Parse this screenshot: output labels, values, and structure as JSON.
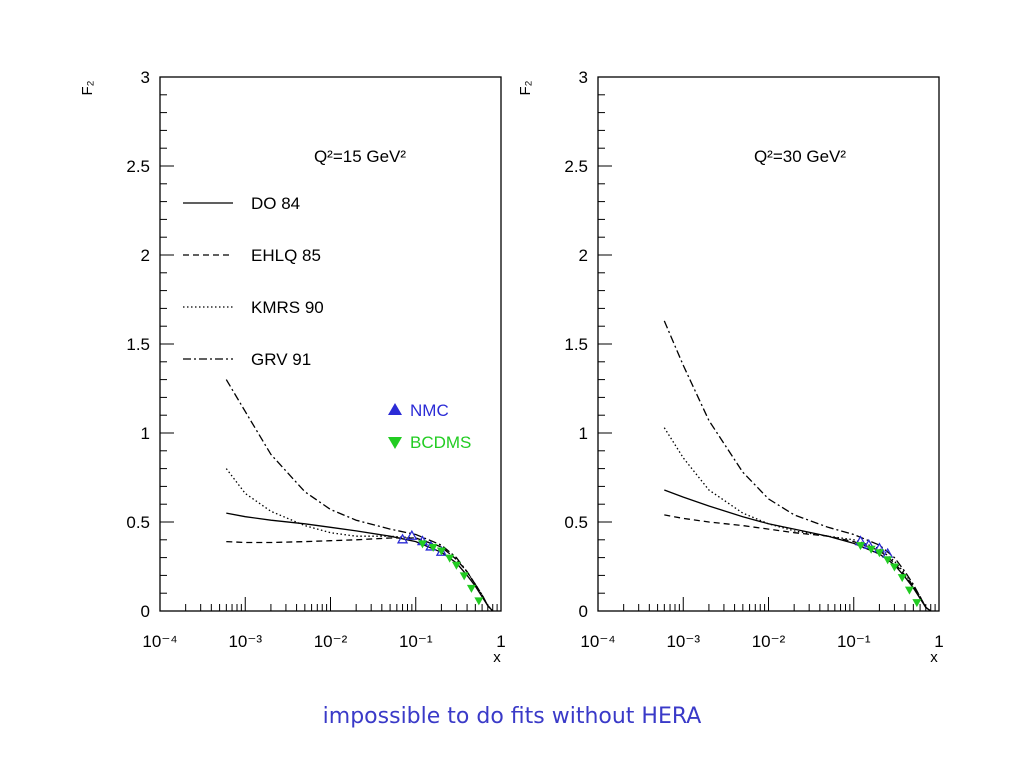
{
  "caption": "impossible to do fits without HERA",
  "chart_data": [
    {
      "type": "line",
      "title": "Q²=15 GeV²",
      "ylabel": "F₂",
      "xlabel": "x",
      "xscale": "log",
      "xlim": [
        0.0001,
        1
      ],
      "ylim": [
        0,
        3
      ],
      "xticks": [
        "10⁻⁴",
        "10⁻³",
        "10⁻²",
        "10⁻¹",
        "1"
      ],
      "yticks": [
        "0",
        "0.5",
        "1",
        "1.5",
        "2",
        "2.5",
        "3"
      ],
      "legend": "top-left",
      "series": [
        {
          "name": "DO 84",
          "style": "solid",
          "x": [
            0.0006,
            0.001,
            0.002,
            0.005,
            0.01,
            0.02,
            0.05,
            0.1,
            0.2,
            0.3,
            0.4,
            0.5,
            0.6,
            0.7,
            0.8
          ],
          "y": [
            0.55,
            0.53,
            0.51,
            0.49,
            0.47,
            0.45,
            0.42,
            0.39,
            0.33,
            0.27,
            0.2,
            0.14,
            0.08,
            0.03,
            0.0
          ]
        },
        {
          "name": "EHLQ 85",
          "style": "dashed",
          "x": [
            0.0006,
            0.001,
            0.002,
            0.005,
            0.01,
            0.02,
            0.05,
            0.1,
            0.2,
            0.3,
            0.4,
            0.5,
            0.6,
            0.7,
            0.8
          ],
          "y": [
            0.39,
            0.385,
            0.385,
            0.39,
            0.395,
            0.4,
            0.41,
            0.41,
            0.36,
            0.29,
            0.22,
            0.15,
            0.09,
            0.03,
            0.0
          ]
        },
        {
          "name": "KMRS 90",
          "style": "dotted",
          "x": [
            0.0006,
            0.001,
            0.002,
            0.005,
            0.01,
            0.02,
            0.05,
            0.1,
            0.2,
            0.3,
            0.4,
            0.5,
            0.6,
            0.7,
            0.8
          ],
          "y": [
            0.8,
            0.66,
            0.56,
            0.48,
            0.44,
            0.42,
            0.42,
            0.41,
            0.36,
            0.29,
            0.22,
            0.15,
            0.09,
            0.03,
            0.0
          ]
        },
        {
          "name": "GRV 91",
          "style": "dashdot",
          "x": [
            0.0006,
            0.001,
            0.002,
            0.005,
            0.01,
            0.02,
            0.05,
            0.1,
            0.2,
            0.3,
            0.4,
            0.5,
            0.6,
            0.7,
            0.8
          ],
          "y": [
            1.3,
            1.12,
            0.88,
            0.67,
            0.57,
            0.51,
            0.46,
            0.43,
            0.37,
            0.3,
            0.22,
            0.15,
            0.09,
            0.03,
            0.0
          ]
        }
      ],
      "data_series": [
        {
          "name": "NMC",
          "color": "#2b2bd6",
          "marker": "triangle-up",
          "x": [
            0.07,
            0.09,
            0.12,
            0.15,
            0.2
          ],
          "y": [
            0.4,
            0.42,
            0.39,
            0.36,
            0.33
          ]
        },
        {
          "name": "BCDMS",
          "color": "#22cc22",
          "marker": "triangle-down",
          "x": [
            0.12,
            0.16,
            0.2,
            0.25,
            0.3,
            0.37,
            0.45,
            0.55
          ],
          "y": [
            0.38,
            0.36,
            0.34,
            0.3,
            0.26,
            0.2,
            0.13,
            0.06
          ]
        }
      ]
    },
    {
      "type": "line",
      "title": "Q²=30 GeV²",
      "ylabel": "F₂",
      "xlabel": "x",
      "xscale": "log",
      "xlim": [
        0.0001,
        1
      ],
      "ylim": [
        0,
        3
      ],
      "xticks": [
        "10⁻⁴",
        "10⁻³",
        "10⁻²",
        "10⁻¹",
        "1"
      ],
      "yticks": [
        "0",
        "0.5",
        "1",
        "1.5",
        "2",
        "2.5",
        "3"
      ],
      "series": [
        {
          "name": "DO 84",
          "style": "solid",
          "x": [
            0.0006,
            0.001,
            0.002,
            0.005,
            0.01,
            0.02,
            0.05,
            0.1,
            0.2,
            0.3,
            0.4,
            0.5,
            0.6,
            0.7,
            0.8
          ],
          "y": [
            0.68,
            0.64,
            0.59,
            0.53,
            0.49,
            0.46,
            0.42,
            0.38,
            0.32,
            0.26,
            0.19,
            0.13,
            0.07,
            0.02,
            0.0
          ]
        },
        {
          "name": "EHLQ 85",
          "style": "dashed",
          "x": [
            0.0006,
            0.001,
            0.002,
            0.005,
            0.01,
            0.02,
            0.05,
            0.1,
            0.2,
            0.3,
            0.4,
            0.5,
            0.6,
            0.7,
            0.8
          ],
          "y": [
            0.54,
            0.52,
            0.5,
            0.48,
            0.46,
            0.44,
            0.42,
            0.39,
            0.34,
            0.27,
            0.2,
            0.14,
            0.08,
            0.02,
            0.0
          ]
        },
        {
          "name": "KMRS 90",
          "style": "dotted",
          "x": [
            0.0006,
            0.001,
            0.002,
            0.005,
            0.01,
            0.02,
            0.05,
            0.1,
            0.2,
            0.3,
            0.4,
            0.5,
            0.6,
            0.7,
            0.8
          ],
          "y": [
            1.03,
            0.86,
            0.68,
            0.55,
            0.49,
            0.45,
            0.42,
            0.4,
            0.35,
            0.28,
            0.21,
            0.14,
            0.08,
            0.02,
            0.0
          ]
        },
        {
          "name": "GRV 91",
          "style": "dashdot",
          "x": [
            0.0006,
            0.001,
            0.002,
            0.005,
            0.01,
            0.02,
            0.05,
            0.1,
            0.2,
            0.3,
            0.4,
            0.5,
            0.6,
            0.7,
            0.8
          ],
          "y": [
            1.63,
            1.38,
            1.07,
            0.78,
            0.63,
            0.54,
            0.47,
            0.43,
            0.37,
            0.3,
            0.22,
            0.15,
            0.08,
            0.02,
            0.0
          ]
        }
      ],
      "data_series": [
        {
          "name": "NMC",
          "color": "#2b2bd6",
          "marker": "triangle-up",
          "x": [
            0.12,
            0.15,
            0.2,
            0.25
          ],
          "y": [
            0.39,
            0.37,
            0.35,
            0.32
          ]
        },
        {
          "name": "BCDMS",
          "color": "#22cc22",
          "marker": "triangle-down",
          "x": [
            0.12,
            0.16,
            0.2,
            0.25,
            0.3,
            0.37,
            0.45,
            0.55
          ],
          "y": [
            0.37,
            0.35,
            0.33,
            0.29,
            0.25,
            0.19,
            0.12,
            0.05
          ]
        }
      ]
    }
  ]
}
